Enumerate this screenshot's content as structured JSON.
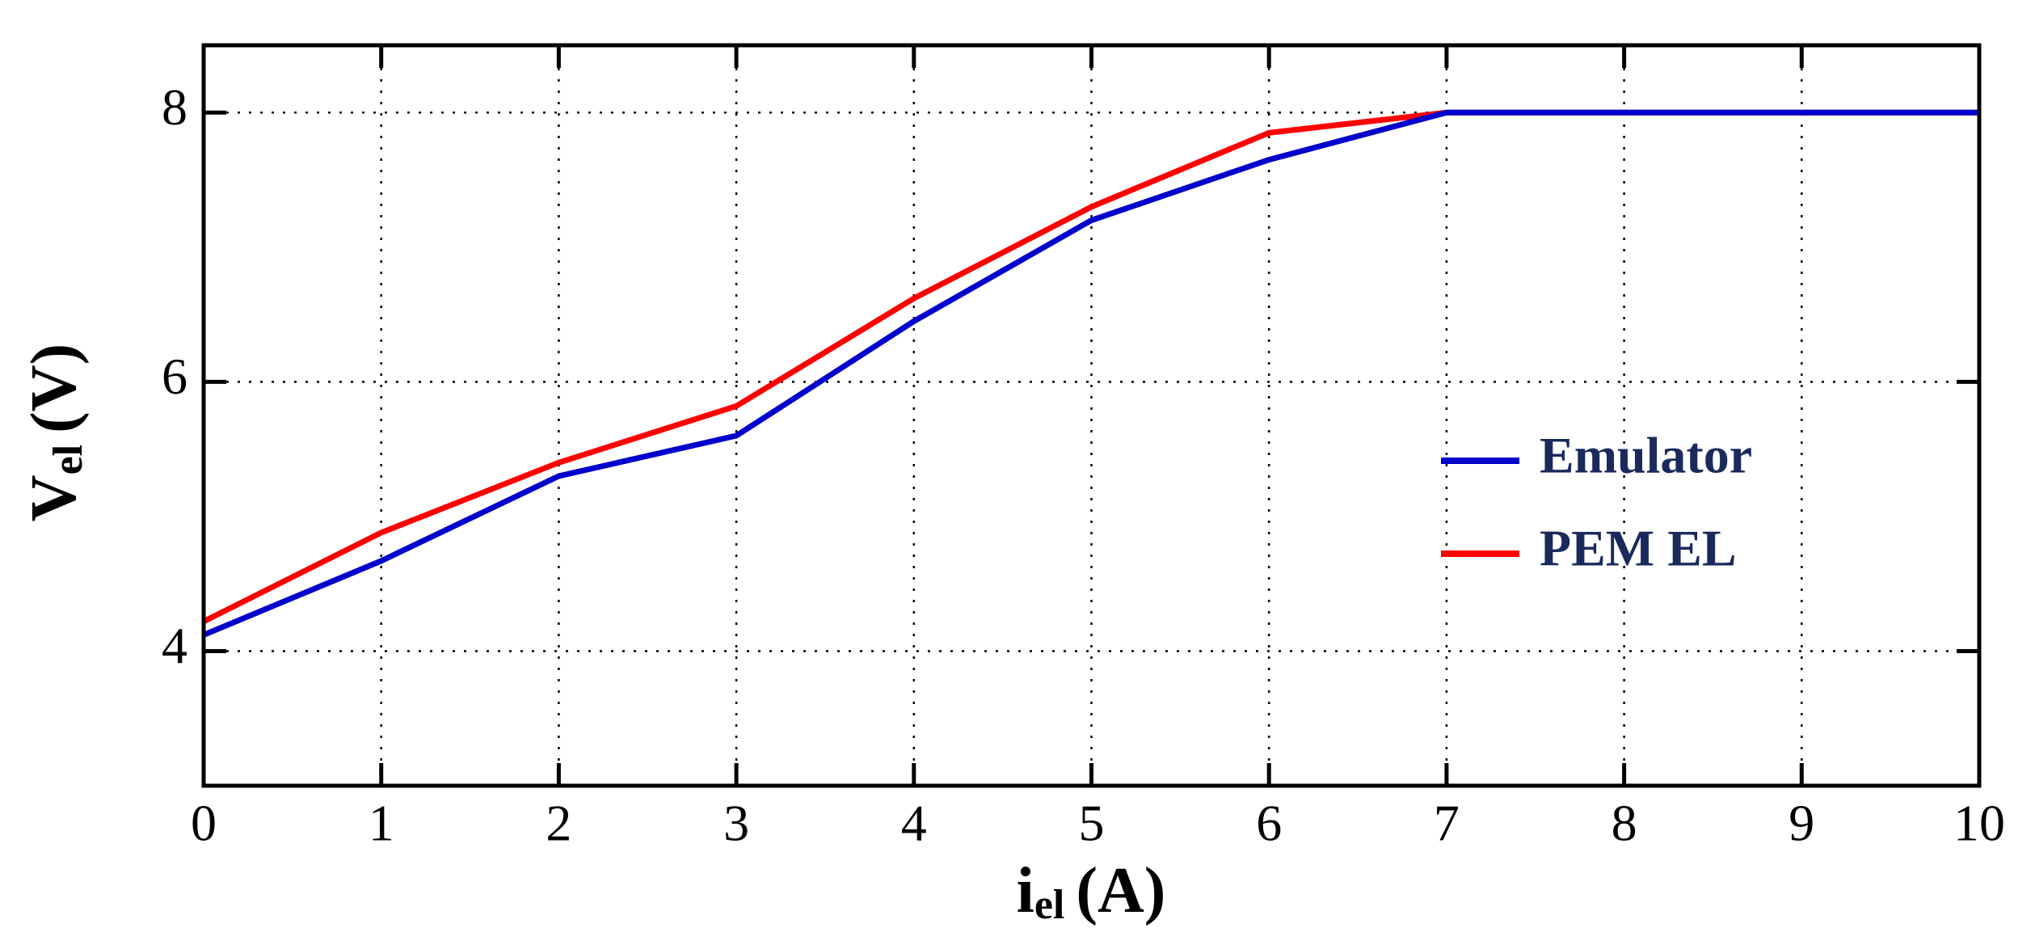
{
  "chart_data": {
    "type": "line",
    "xlabel": {
      "main": "i",
      "sub": "el",
      "unit": "(A)"
    },
    "ylabel": {
      "main": "V",
      "sub": "el",
      "unit": "(V)"
    },
    "x": [
      0,
      1,
      2,
      3,
      4,
      5,
      6,
      7,
      8,
      9,
      10
    ],
    "series": [
      {
        "name": "PEM EL",
        "color": "#ff0000",
        "values": [
          4.22,
          4.88,
          5.4,
          5.82,
          6.62,
          7.3,
          7.85,
          8.0,
          8.0,
          8.0,
          8.0
        ]
      },
      {
        "name": "Emulator",
        "color": "#0000cc",
        "values": [
          4.12,
          4.67,
          5.3,
          5.6,
          6.45,
          7.2,
          7.65,
          8.0,
          8.0,
          8.0,
          8.0
        ]
      }
    ],
    "xlim": [
      0,
      10
    ],
    "xticks": [
      0,
      1,
      2,
      3,
      4,
      5,
      6,
      7,
      8,
      9,
      10
    ],
    "ylim": [
      3,
      8.5
    ],
    "yticks": [
      4,
      6,
      8
    ],
    "grid": true
  }
}
